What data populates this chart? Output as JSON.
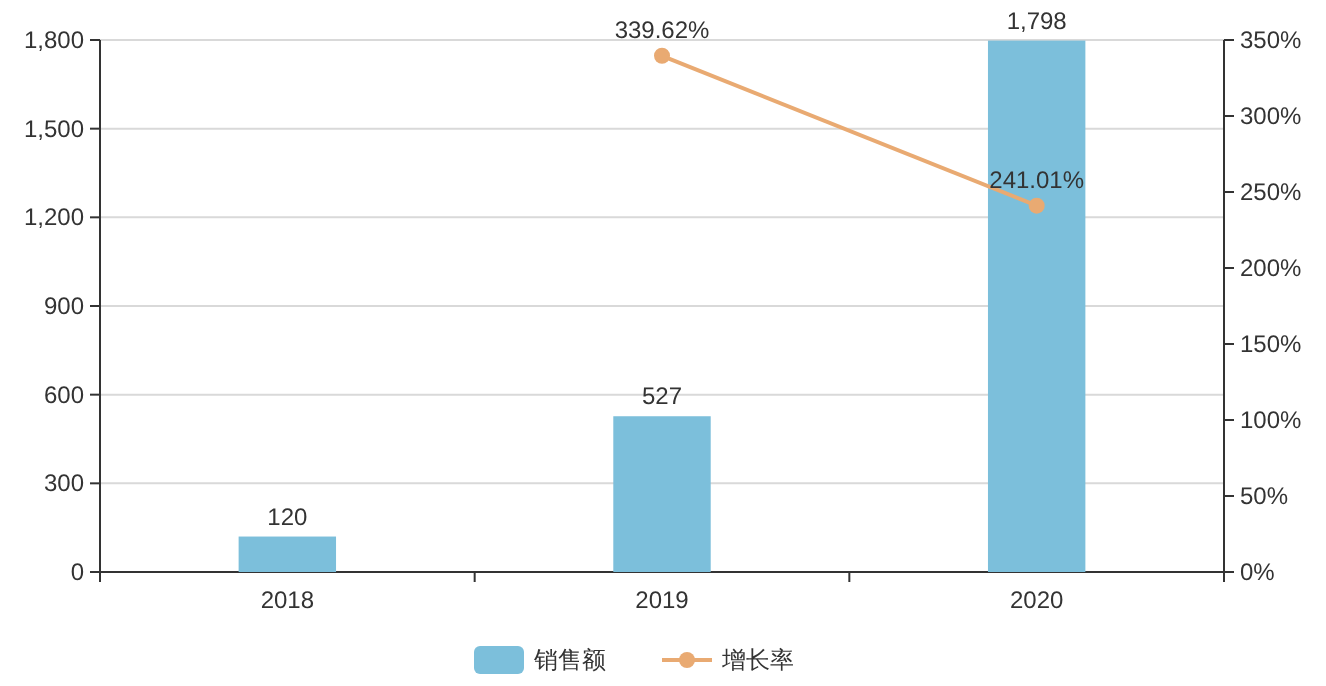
{
  "chart_data": {
    "type": "bar",
    "categories": [
      "2018",
      "2019",
      "2020"
    ],
    "series": [
      {
        "name": "销售额",
        "color": "#7cbfdb",
        "values": [
          120,
          527,
          1798
        ],
        "value_labels": [
          "120",
          "527",
          "1,798"
        ]
      },
      {
        "name": "增长率",
        "type": "line",
        "axis": "y2",
        "color": "#e9aa72",
        "marker": "circle",
        "values": [
          null,
          339.62,
          241.01
        ],
        "value_labels": [
          null,
          "339.62%",
          "241.01%"
        ]
      }
    ],
    "ylim": [
      0,
      1800
    ],
    "yticks": [
      0,
      {
        "value": 300,
        "label": "300"
      },
      {
        "value": 600,
        "label": "600"
      },
      {
        "value": 900,
        "label": "900"
      },
      {
        "value": 1200,
        "label": "1,200"
      },
      {
        "value": 1500,
        "label": "1,500"
      },
      {
        "value": 1800,
        "label": "1,800"
      }
    ],
    "y2lim": [
      0,
      350
    ],
    "y2ticks": [
      {
        "value": 0,
        "label": "0%"
      },
      {
        "value": 50,
        "label": "50%"
      },
      {
        "value": 100,
        "label": "100%"
      },
      {
        "value": 150,
        "label": "150%"
      },
      {
        "value": 200,
        "label": "200%"
      },
      {
        "value": 250,
        "label": "250%"
      },
      {
        "value": 300,
        "label": "300%"
      },
      {
        "value": 350,
        "label": "350%"
      }
    ],
    "grid": "y",
    "legend": "bottom"
  }
}
